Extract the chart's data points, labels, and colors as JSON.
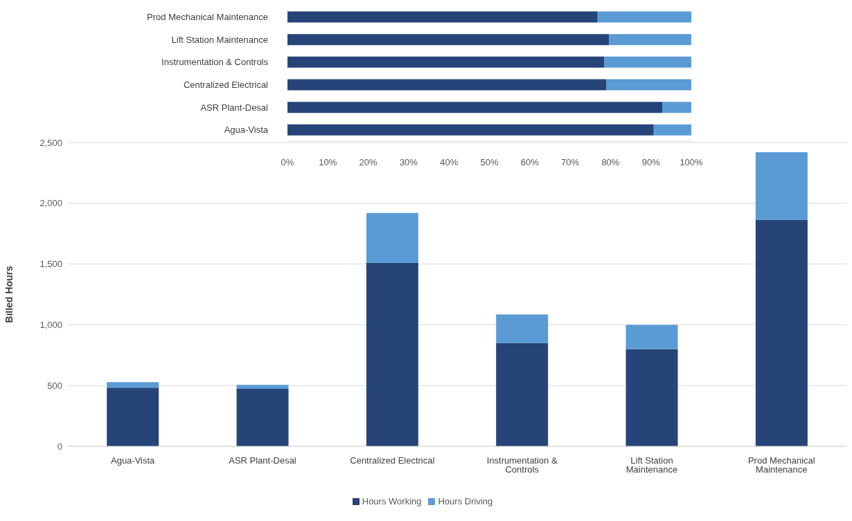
{
  "chart_data": [
    {
      "type": "bar",
      "ylabel": "Billed Hours",
      "categories": [
        "Agua-Vista",
        "ASR Plant-Desal",
        "Centralized Electrical",
        "Instrumentation & Controls",
        "Lift Station Maintenance",
        "Prod Mechanical Maintenance"
      ],
      "stacked": true,
      "series": [
        {
          "name": "Hours Working",
          "color": "#264478",
          "values": [
            483,
            472,
            1510,
            850,
            800,
            1865
          ]
        },
        {
          "name": "Hours Driving",
          "color": "#5b9bd5",
          "values": [
            45,
            34,
            410,
            235,
            200,
            555
          ]
        }
      ],
      "ylim": [
        0,
        2500
      ],
      "yticks": [
        0,
        {
          "value": 500,
          "label": "500"
        },
        {
          "value": 1000,
          "label": "1,000"
        },
        {
          "value": 1500,
          "label": "1,500"
        },
        {
          "value": 2000,
          "label": "2,000"
        },
        {
          "value": 2500,
          "label": "2,500"
        }
      ],
      "grid": "y",
      "legend": "bottom"
    },
    {
      "type": "bar",
      "orientation": "horizontal",
      "stacked": true,
      "categories": [
        "Prod Mechanical Maintenance",
        "Lift Station Maintenance",
        "Instrumentation & Controls",
        "Centralized Electrical",
        "ASR Plant-Desal",
        "Agua-Vista"
      ],
      "series": [
        {
          "color": "#264478",
          "values": [
            76.8,
            79.6,
            78.4,
            79,
            92.8,
            90.7
          ]
        },
        {
          "color": "#5b9bd5",
          "values": [
            23.2,
            20.4,
            21.6,
            21,
            7.2,
            9.3
          ]
        }
      ],
      "xlim": [
        0,
        100
      ],
      "xticks": [
        {
          "value": 0,
          "label": "0%"
        },
        {
          "value": 10,
          "label": "10%"
        },
        {
          "value": 20,
          "label": "20%"
        },
        {
          "value": 30,
          "label": "30%"
        },
        {
          "value": 40,
          "label": "40%"
        },
        {
          "value": 50,
          "label": "50%"
        },
        {
          "value": 60,
          "label": "60%"
        },
        {
          "value": 70,
          "label": "70%"
        },
        {
          "value": 80,
          "label": "80%"
        },
        {
          "value": 90,
          "label": "90%"
        },
        {
          "value": 100,
          "label": "100%"
        }
      ]
    }
  ]
}
